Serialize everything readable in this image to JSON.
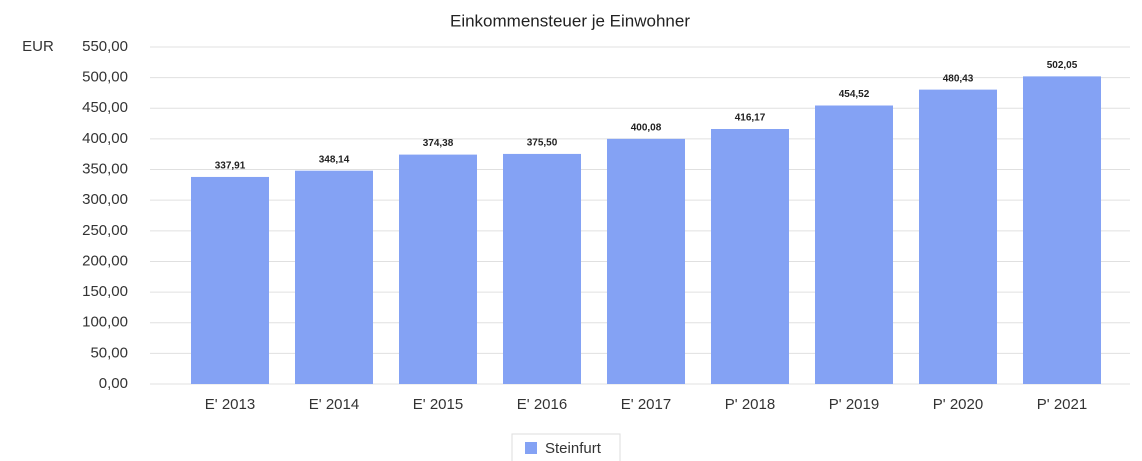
{
  "chart_data": {
    "type": "bar",
    "title": "Einkommensteuer je Einwohner",
    "y_axis_label": "EUR",
    "categories": [
      "E' 2013",
      "E' 2014",
      "E' 2015",
      "E' 2016",
      "E' 2017",
      "P' 2018",
      "P' 2019",
      "P' 2020",
      "P' 2021"
    ],
    "series": [
      {
        "name": "Steinfurt",
        "color": "#84a2f4",
        "values": [
          337.91,
          348.14,
          374.38,
          375.5,
          400.08,
          416.17,
          454.52,
          480.43,
          502.05
        ],
        "value_labels": [
          "337,91",
          "348,14",
          "374,38",
          "375,50",
          "400,08",
          "416,17",
          "454,52",
          "480,43",
          "502,05"
        ]
      }
    ],
    "ylim": [
      0,
      550
    ],
    "yticks": [
      {
        "value": 0,
        "label": "0,00"
      },
      {
        "value": 50,
        "label": "50,00"
      },
      {
        "value": 100,
        "label": "100,00"
      },
      {
        "value": 150,
        "label": "150,00"
      },
      {
        "value": 200,
        "label": "200,00"
      },
      {
        "value": 250,
        "label": "250,00"
      },
      {
        "value": 300,
        "label": "300,00"
      },
      {
        "value": 350,
        "label": "350,00"
      },
      {
        "value": 400,
        "label": "400,00"
      },
      {
        "value": 450,
        "label": "450,00"
      },
      {
        "value": 500,
        "label": "500,00"
      },
      {
        "value": 550,
        "label": "550,00"
      }
    ],
    "grid": true,
    "legend": "bottom"
  }
}
